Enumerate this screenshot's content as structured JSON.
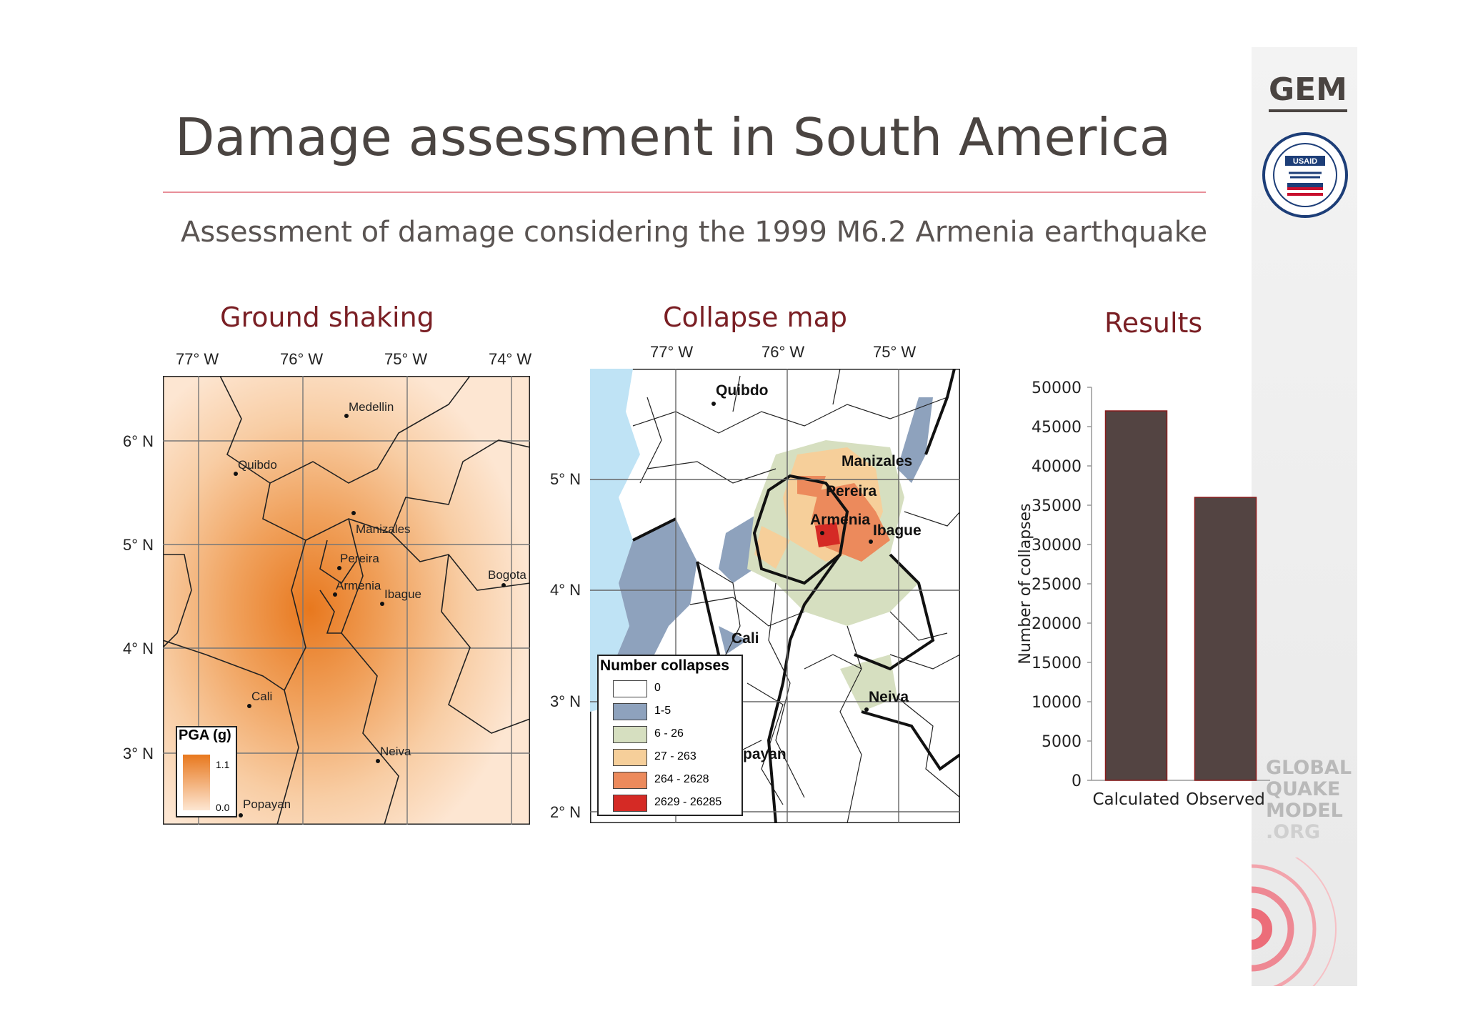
{
  "slide": {
    "title": "Damage assessment in South America",
    "subtitle": "Assessment of damage considering the 1999 M6.2 Armenia earthquake"
  },
  "panels": {
    "ground_shaking": "Ground shaking",
    "collapse_map": "Collapse map",
    "results": "Results"
  },
  "ground_shaking_map": {
    "lon_labels": [
      "77° W",
      "76° W",
      "75° W",
      "74° W"
    ],
    "lat_labels": [
      "6° N",
      "5° N",
      "4° N",
      "3° N"
    ],
    "cities": [
      "Medellin",
      "Quibdo",
      "Manizales",
      "Pereira",
      "Armenia",
      "Ibague",
      "Bogota",
      "Cali",
      "Neiva",
      "Popayan"
    ],
    "legend": {
      "title": "PGA (g)",
      "max": "1.1",
      "min": "0.0",
      "color_high": "#e8781e",
      "color_low": "#fde6d2"
    }
  },
  "collapse_map_data": {
    "lon_labels": [
      "77° W",
      "76° W",
      "75° W"
    ],
    "lat_labels": [
      "5° N",
      "4° N",
      "3° N",
      "2° N"
    ],
    "cities": [
      "Quibdo",
      "Manizales",
      "Pereira",
      "Armenia",
      "Ibague",
      "Cali",
      "Neiva",
      "payan"
    ],
    "legend": {
      "title": "Number collapses",
      "classes": [
        {
          "label": "0",
          "color": "#ffffff"
        },
        {
          "label": "1-5",
          "color": "#8ea2bd"
        },
        {
          "label": "6 - 26",
          "color": "#d6dfc0"
        },
        {
          "label": "27 - 263",
          "color": "#f6cf9a"
        },
        {
          "label": "264 - 2628",
          "color": "#ec8a5c"
        },
        {
          "label": "2629 - 26285",
          "color": "#d52a25"
        }
      ]
    }
  },
  "chart_data": {
    "type": "bar",
    "categories": [
      "Calculated",
      "Observed"
    ],
    "values": [
      47000,
      36000
    ],
    "title": "",
    "xlabel": "",
    "ylabel": "Number of collapses",
    "ylim": [
      0,
      50000
    ],
    "yticks": [
      0,
      5000,
      10000,
      15000,
      20000,
      25000,
      30000,
      35000,
      40000,
      45000,
      50000
    ],
    "bar_color": "#534442",
    "bar_edge_color": "#8b1c1c"
  },
  "branding": {
    "gem": "GEM",
    "usaid": "USAID",
    "gqm": [
      "GLOBAL",
      "QUAKE",
      "MODEL",
      ".ORG"
    ]
  }
}
